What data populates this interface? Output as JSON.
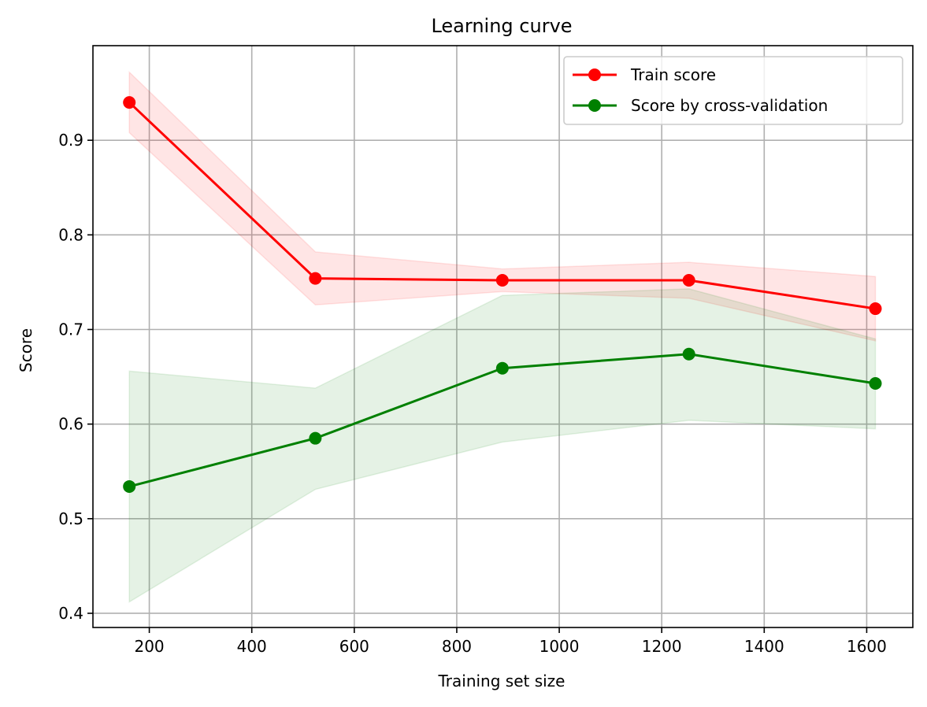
{
  "chart_data": {
    "type": "line",
    "title": "Learning curve",
    "xlabel": "Training set size",
    "ylabel": "Score",
    "xlim": [
      90,
      1690
    ],
    "ylim": [
      0.385,
      1.0
    ],
    "xticks": [
      200,
      400,
      600,
      800,
      1000,
      1200,
      1400,
      1600
    ],
    "yticks": [
      0.4,
      0.5,
      0.6,
      0.7,
      0.8,
      0.9
    ],
    "grid": true,
    "legend_position": "top-right",
    "x": [
      161,
      524,
      889,
      1253,
      1617
    ],
    "series": [
      {
        "name": "Train score",
        "color": "#ff0000",
        "values": [
          0.94,
          0.754,
          0.752,
          0.752,
          0.722
        ],
        "band_upper": [
          0.972,
          0.782,
          0.764,
          0.771,
          0.756
        ],
        "band_lower": [
          0.908,
          0.726,
          0.74,
          0.733,
          0.688
        ]
      },
      {
        "name": "Score by cross-validation",
        "color": "#008000",
        "values": [
          0.534,
          0.585,
          0.659,
          0.674,
          0.643
        ],
        "band_upper": [
          0.656,
          0.638,
          0.736,
          0.743,
          0.69
        ],
        "band_lower": [
          0.412,
          0.531,
          0.581,
          0.604,
          0.595
        ]
      }
    ]
  }
}
